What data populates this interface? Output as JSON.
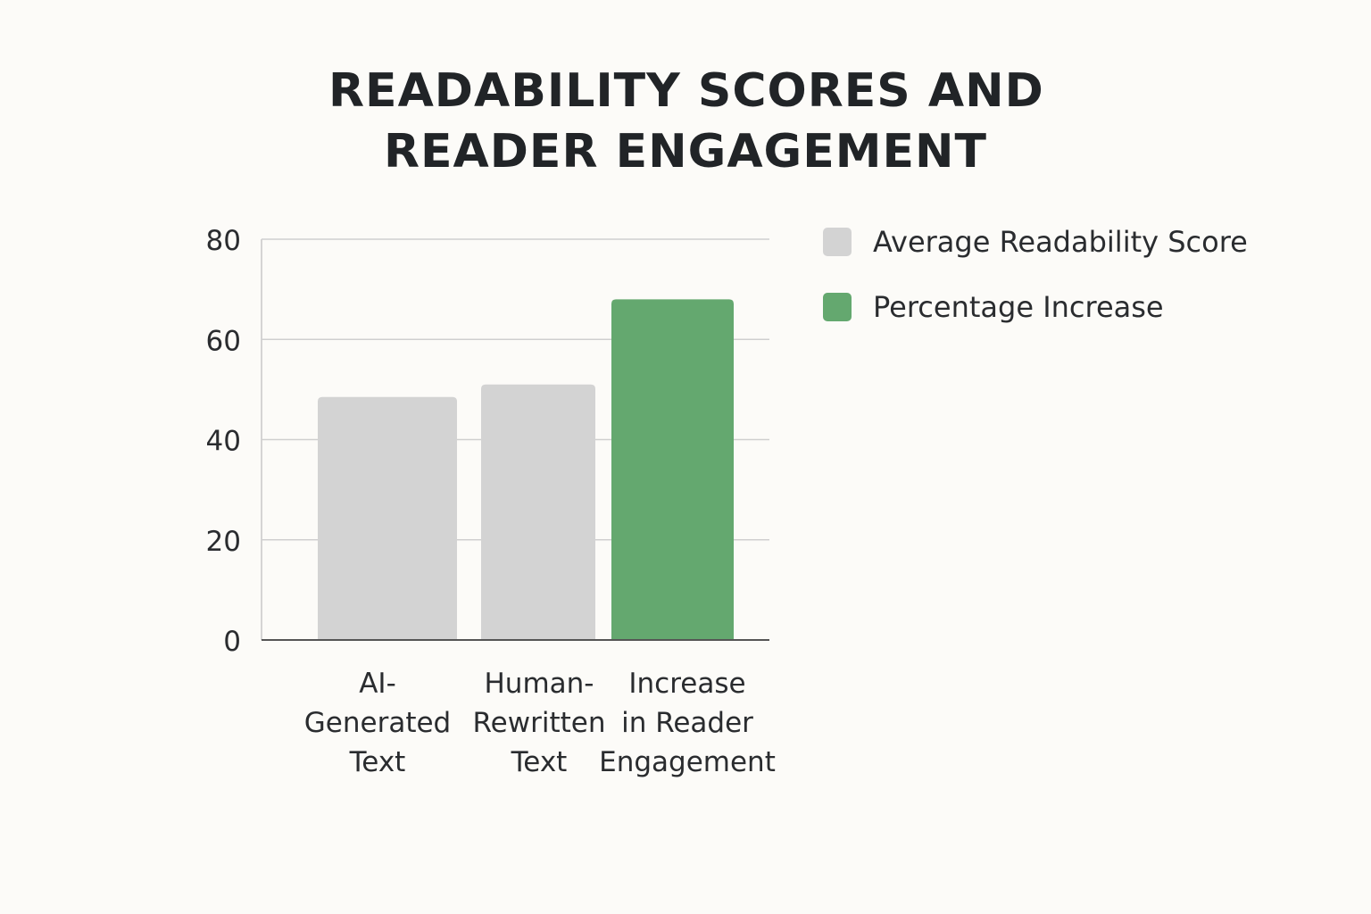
{
  "chart_data": {
    "type": "bar",
    "title_lines": [
      "READABILITY SCORES AND",
      "READER ENGAGEMENT"
    ],
    "categories": [
      [
        "AI-",
        "Generated",
        "Text"
      ],
      [
        "Human-",
        "Rewritten",
        "Text"
      ],
      [
        "Increase",
        "in Reader",
        "Engagement"
      ]
    ],
    "values": [
      48.5,
      51,
      68
    ],
    "bar_series": [
      0,
      0,
      1
    ],
    "series": [
      {
        "name": "Average Readability Score",
        "color": "#d3d3d3"
      },
      {
        "name": "Percentage Increase",
        "color": "#64a86f"
      }
    ],
    "ylim": [
      0,
      80
    ],
    "yticks": [
      0,
      20,
      40,
      60,
      80
    ],
    "grid": true,
    "legend_position": "right"
  }
}
